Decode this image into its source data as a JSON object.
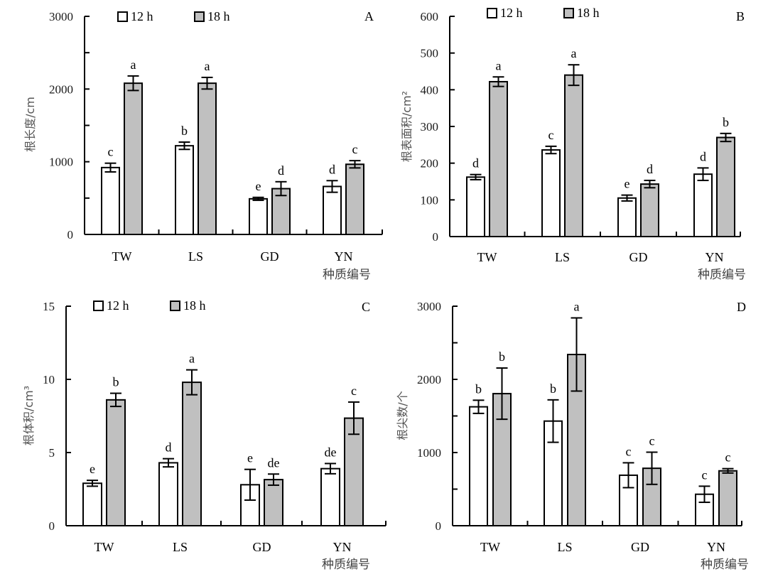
{
  "figure": {
    "series_names": [
      "12 h",
      "18 h"
    ],
    "colors": {
      "12 h": "#ffffff",
      "18 h": "#c0c0c0",
      "outline": "#000000"
    }
  },
  "chart_data": [
    {
      "type": "bar",
      "panel": "A",
      "title": "",
      "ylabel": "根长度/cm",
      "xlabel": "种质编号",
      "ylim": [
        0,
        3000
      ],
      "yticks": [
        0,
        1000,
        2000,
        3000
      ],
      "categories": [
        "TW",
        "LS",
        "GD",
        "YN"
      ],
      "legend": "top-left",
      "series": [
        {
          "name": "12 h",
          "values": [
            920,
            1220,
            490,
            660
          ],
          "errors": [
            60,
            50,
            20,
            80
          ],
          "letters": [
            "c",
            "b",
            "e",
            "d"
          ]
        },
        {
          "name": "18 h",
          "values": [
            2080,
            2080,
            630,
            965
          ],
          "errors": [
            100,
            80,
            95,
            50
          ],
          "letters": [
            "a",
            "a",
            "d",
            "c"
          ]
        }
      ]
    },
    {
      "type": "bar",
      "panel": "B",
      "title": "",
      "ylabel": "根表面积/cm²",
      "xlabel": "种质编号",
      "ylim": [
        0,
        600
      ],
      "yticks": [
        0,
        100,
        200,
        300,
        400,
        500,
        600
      ],
      "categories": [
        "TW",
        "LS",
        "GD",
        "YN"
      ],
      "legend": "top-left",
      "series": [
        {
          "name": "12 h",
          "values": [
            162,
            236,
            105,
            170
          ],
          "errors": [
            7,
            10,
            8,
            17
          ],
          "letters": [
            "d",
            "c",
            "e",
            "d"
          ]
        },
        {
          "name": "18 h",
          "values": [
            422,
            440,
            143,
            270
          ],
          "errors": [
            13,
            28,
            10,
            11
          ],
          "letters": [
            "a",
            "a",
            "d",
            "b"
          ]
        }
      ]
    },
    {
      "type": "bar",
      "panel": "C",
      "title": "",
      "ylabel": "根体积/cm³",
      "xlabel": "种质编号",
      "ylim": [
        0,
        15
      ],
      "yticks": [
        0,
        5,
        10,
        15
      ],
      "categories": [
        "TW",
        "LS",
        "GD",
        "YN"
      ],
      "legend": "top-left",
      "series": [
        {
          "name": "12 h",
          "values": [
            2.9,
            4.3,
            2.8,
            3.9
          ],
          "errors": [
            0.2,
            0.28,
            1.05,
            0.35
          ],
          "letters": [
            "e",
            "d",
            "e",
            "de"
          ]
        },
        {
          "name": "18 h",
          "values": [
            8.6,
            9.8,
            3.15,
            7.35
          ],
          "errors": [
            0.45,
            0.85,
            0.38,
            1.1
          ],
          "letters": [
            "b",
            "a",
            "de",
            "c"
          ]
        }
      ]
    },
    {
      "type": "bar",
      "panel": "D",
      "title": "",
      "ylabel": "根尖数/个",
      "xlabel": "种质编号",
      "ylim": [
        0,
        3000
      ],
      "yticks": [
        0,
        1000,
        2000,
        3000
      ],
      "categories": [
        "TW",
        "LS",
        "GD",
        "YN"
      ],
      "legend": "none",
      "series": [
        {
          "name": "12 h",
          "values": [
            1625,
            1430,
            690,
            430
          ],
          "errors": [
            90,
            290,
            170,
            110
          ],
          "letters": [
            "b",
            "b",
            "c",
            "c"
          ]
        },
        {
          "name": "18 h",
          "values": [
            1805,
            2340,
            785,
            750
          ],
          "errors": [
            350,
            500,
            220,
            30
          ],
          "letters": [
            "b",
            "a",
            "c",
            "c"
          ]
        }
      ]
    }
  ]
}
